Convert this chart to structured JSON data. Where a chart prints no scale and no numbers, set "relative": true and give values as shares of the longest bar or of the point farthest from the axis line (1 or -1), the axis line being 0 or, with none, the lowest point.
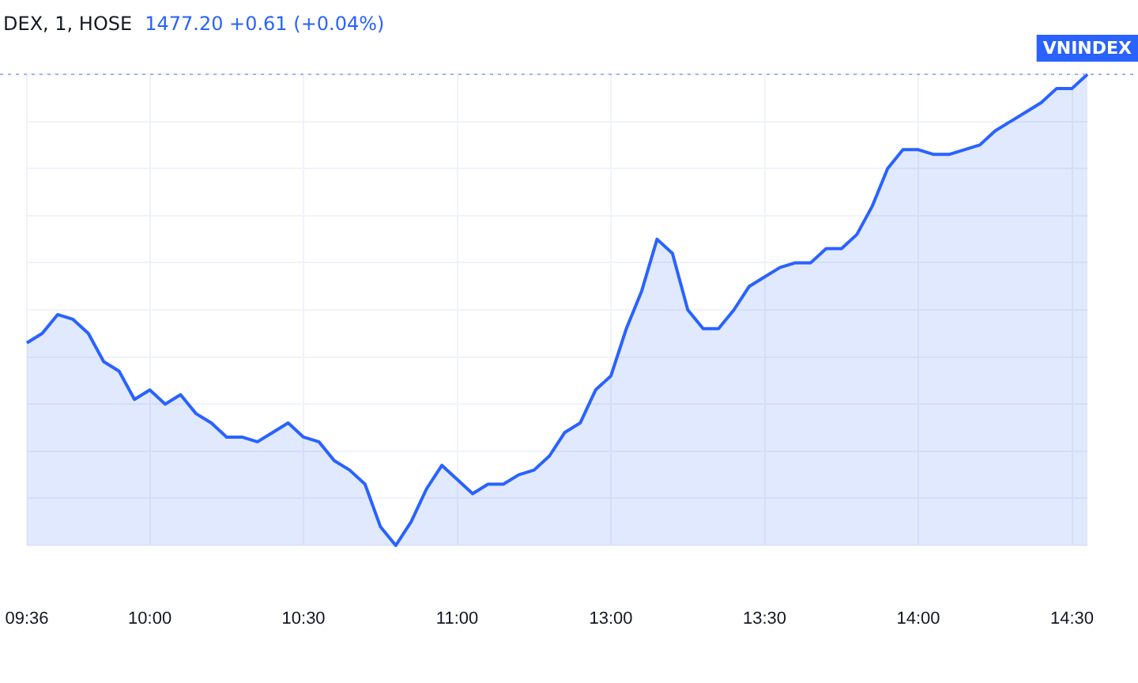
{
  "chart_data": {
    "type": "area",
    "title": "DEX, 1, HOSE",
    "annotations": [
      "1477.20 +0.61 (+0.04%)"
    ],
    "relative": true,
    "grid": true,
    "legend": false,
    "marker": "none",
    "line_style": "solid",
    "categories": [
      "09:36",
      null,
      null,
      null,
      null,
      null,
      null,
      null,
      "10:00",
      null,
      null,
      null,
      null,
      null,
      null,
      null,
      null,
      null,
      "10:30",
      null,
      null,
      null,
      null,
      null,
      null,
      null,
      null,
      null,
      "11:00",
      null,
      null,
      null,
      null,
      null,
      null,
      null,
      null,
      null,
      "13:00",
      null,
      null,
      null,
      null,
      null,
      null,
      null,
      null,
      null,
      "13:30",
      null,
      null,
      null,
      null,
      null,
      null,
      null,
      null,
      null,
      "14:00",
      null,
      null,
      null,
      null,
      null,
      null,
      null,
      null,
      null,
      "14:30",
      null
    ],
    "series": [
      {
        "name": "VNINDEX",
        "color": "#2962ff",
        "values": [
          0.43,
          0.45,
          0.49,
          0.48,
          0.45,
          0.39,
          0.37,
          0.31,
          0.33,
          0.3,
          0.32,
          0.28,
          0.26,
          0.23,
          0.23,
          0.22,
          0.24,
          0.26,
          0.23,
          0.22,
          0.18,
          0.16,
          0.13,
          0.04,
          0,
          0.05,
          0.12,
          0.17,
          0.14,
          0.11,
          0.13,
          0.13,
          0.15,
          0.16,
          0.19,
          0.24,
          0.26,
          0.33,
          0.36,
          0.46,
          0.54,
          0.65,
          0.62,
          0.5,
          0.46,
          0.46,
          0.5,
          0.55,
          0.57,
          0.59,
          0.6,
          0.6,
          0.63,
          0.63,
          0.66,
          0.72,
          0.8,
          0.84,
          0.84,
          0.83,
          0.83,
          0.84,
          0.85,
          0.88,
          0.9,
          0.92,
          0.94,
          0.97,
          0.97,
          1
        ]
      }
    ],
    "ref_lines": [
      {
        "axis": "y",
        "value": 1,
        "color": "#9fb4f5",
        "line_style": "dotted"
      }
    ]
  }
}
